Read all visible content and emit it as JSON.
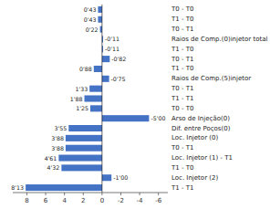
{
  "chart_data": {
    "type": "bar",
    "orientation": "horizontal",
    "categories": [
      "T0 - T0",
      "T1 - T0",
      "T0 - T1",
      "Raios de Comp.(0)injetor total",
      "T1 - T0",
      "T0 - T1",
      "T1 - T0",
      "Raios de Comp.(5)injetor",
      "T0 - T1",
      "T1 - T1",
      "T0 - T0",
      "Arso de Injeção(0)",
      "Dif. entre Poços(0)",
      "Loc. Injetor (0)",
      "T0 - T1",
      "Loc. Injetor (1) - T1",
      "T1 - T0",
      "Loc. Injetor (2)",
      "T1 - T1"
    ],
    "values": [
      0.43,
      0.43,
      0.22,
      -0.11,
      -0.11,
      -0.82,
      0.88,
      -0.75,
      1.33,
      1.88,
      1.25,
      -5.0,
      3.55,
      3.88,
      3.88,
      4.61,
      4.32,
      -1.0,
      8.13
    ],
    "value_labels": [
      "0'43",
      "0'43",
      "0'22",
      "-0'11",
      "-0'11",
      "-0'82",
      "0'88",
      "-0'75",
      "1'33",
      "1'88",
      "1'25",
      "-5'00",
      "3'55",
      "3'88",
      "3'88",
      "4'61",
      "4'32",
      "-1'00",
      "8'13"
    ],
    "data_labels": true,
    "color": "#4472C4",
    "xlim": [
      9.5,
      -7.0
    ],
    "xticks": [
      -6,
      -4,
      -2,
      0,
      2,
      4,
      6,
      8
    ],
    "grid": false
  }
}
